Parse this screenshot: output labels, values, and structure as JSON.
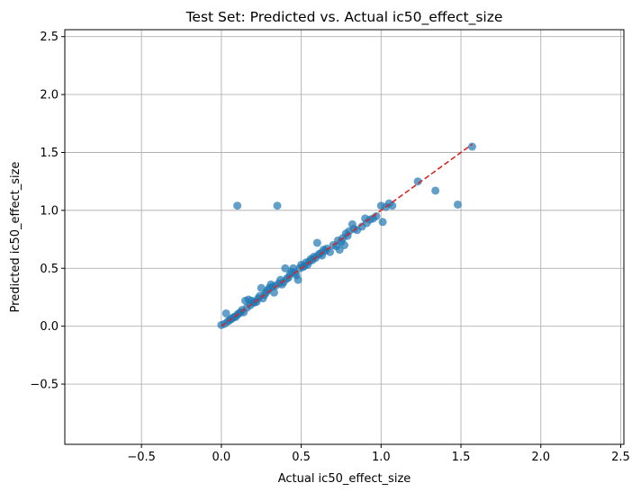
{
  "chart_data": {
    "type": "scatter",
    "title": "Test Set: Predicted vs. Actual ic50_effect_size",
    "xlabel": "Actual ic50_effect_size",
    "ylabel": "Predicted ic50_effect_size",
    "xlim": [
      -0.98,
      2.52
    ],
    "ylim": [
      -1.02,
      2.56
    ],
    "xticks": [
      -0.5,
      0.0,
      0.5,
      1.0,
      1.5,
      2.0,
      2.5
    ],
    "yticks": [
      -0.5,
      0.0,
      0.5,
      1.0,
      1.5,
      2.0,
      2.5
    ],
    "grid": true,
    "point_color": "#1f77b4",
    "point_opacity": 0.7,
    "reference_line": {
      "x": [
        0.0,
        1.57
      ],
      "y": [
        0.0,
        1.57
      ],
      "color": "#d62728",
      "style": "dashed"
    },
    "points": [
      [
        0.0,
        0.01
      ],
      [
        0.02,
        0.02
      ],
      [
        0.03,
        0.11
      ],
      [
        0.04,
        0.04
      ],
      [
        0.05,
        0.05
      ],
      [
        0.06,
        0.06
      ],
      [
        0.07,
        0.07
      ],
      [
        0.08,
        0.08
      ],
      [
        0.09,
        0.08
      ],
      [
        0.1,
        0.1
      ],
      [
        0.1,
        1.04
      ],
      [
        0.11,
        0.11
      ],
      [
        0.12,
        0.12
      ],
      [
        0.13,
        0.14
      ],
      [
        0.14,
        0.12
      ],
      [
        0.15,
        0.22
      ],
      [
        0.16,
        0.16
      ],
      [
        0.17,
        0.23
      ],
      [
        0.18,
        0.18
      ],
      [
        0.19,
        0.22
      ],
      [
        0.2,
        0.2
      ],
      [
        0.21,
        0.21
      ],
      [
        0.22,
        0.21
      ],
      [
        0.23,
        0.24
      ],
      [
        0.24,
        0.26
      ],
      [
        0.25,
        0.33
      ],
      [
        0.26,
        0.24
      ],
      [
        0.27,
        0.27
      ],
      [
        0.28,
        0.29
      ],
      [
        0.29,
        0.31
      ],
      [
        0.3,
        0.33
      ],
      [
        0.31,
        0.36
      ],
      [
        0.32,
        0.34
      ],
      [
        0.33,
        0.29
      ],
      [
        0.34,
        0.35
      ],
      [
        0.35,
        1.04
      ],
      [
        0.36,
        0.37
      ],
      [
        0.37,
        0.4
      ],
      [
        0.38,
        0.36
      ],
      [
        0.39,
        0.38
      ],
      [
        0.4,
        0.5
      ],
      [
        0.41,
        0.41
      ],
      [
        0.42,
        0.42
      ],
      [
        0.43,
        0.45
      ],
      [
        0.44,
        0.47
      ],
      [
        0.45,
        0.5
      ],
      [
        0.46,
        0.46
      ],
      [
        0.47,
        0.44
      ],
      [
        0.48,
        0.4
      ],
      [
        0.49,
        0.5
      ],
      [
        0.5,
        0.53
      ],
      [
        0.51,
        0.51
      ],
      [
        0.52,
        0.52
      ],
      [
        0.53,
        0.55
      ],
      [
        0.54,
        0.53
      ],
      [
        0.55,
        0.56
      ],
      [
        0.56,
        0.58
      ],
      [
        0.57,
        0.57
      ],
      [
        0.58,
        0.6
      ],
      [
        0.59,
        0.59
      ],
      [
        0.6,
        0.72
      ],
      [
        0.61,
        0.62
      ],
      [
        0.62,
        0.63
      ],
      [
        0.63,
        0.61
      ],
      [
        0.64,
        0.66
      ],
      [
        0.65,
        0.65
      ],
      [
        0.66,
        0.67
      ],
      [
        0.68,
        0.64
      ],
      [
        0.7,
        0.7
      ],
      [
        0.72,
        0.69
      ],
      [
        0.73,
        0.74
      ],
      [
        0.74,
        0.66
      ],
      [
        0.75,
        0.73
      ],
      [
        0.76,
        0.76
      ],
      [
        0.77,
        0.7
      ],
      [
        0.78,
        0.8
      ],
      [
        0.79,
        0.78
      ],
      [
        0.8,
        0.82
      ],
      [
        0.82,
        0.88
      ],
      [
        0.83,
        0.84
      ],
      [
        0.85,
        0.83
      ],
      [
        0.88,
        0.86
      ],
      [
        0.9,
        0.93
      ],
      [
        0.91,
        0.89
      ],
      [
        0.93,
        0.92
      ],
      [
        0.95,
        0.93
      ],
      [
        0.97,
        0.95
      ],
      [
        1.0,
        1.04
      ],
      [
        1.01,
        0.9
      ],
      [
        1.03,
        1.03
      ],
      [
        1.05,
        1.06
      ],
      [
        1.07,
        1.04
      ],
      [
        1.23,
        1.25
      ],
      [
        1.34,
        1.17
      ],
      [
        1.48,
        1.05
      ],
      [
        1.57,
        1.55
      ]
    ]
  }
}
